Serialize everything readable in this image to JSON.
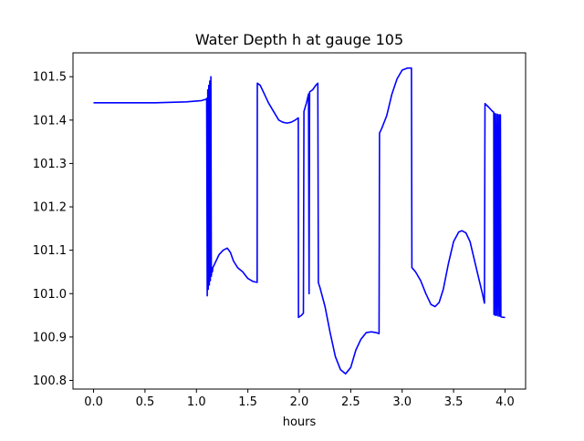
{
  "chart_data": {
    "type": "line",
    "title": "Water Depth h at gauge 105",
    "xlabel": "hours",
    "ylabel": "",
    "xlim": [
      -0.2,
      4.2
    ],
    "ylim": [
      100.78,
      101.555
    ],
    "grid": false,
    "legend": "none",
    "line_color": "#0000ff",
    "x_ticks": [
      0.0,
      0.5,
      1.0,
      1.5,
      2.0,
      2.5,
      3.0,
      3.5,
      4.0
    ],
    "x_tick_labels": [
      "0.0",
      "0.5",
      "1.0",
      "1.5",
      "2.0",
      "2.5",
      "3.0",
      "3.5",
      "4.0"
    ],
    "y_ticks": [
      100.8,
      100.9,
      101.0,
      101.1,
      101.2,
      101.3,
      101.4,
      101.5
    ],
    "y_tick_labels": [
      "100.8",
      "100.9",
      "101.0",
      "101.1",
      "101.2",
      "101.3",
      "101.4",
      "101.5"
    ],
    "series": [
      {
        "x": [
          0.0,
          0.3,
          0.6,
          0.9,
          1.05,
          1.095,
          1.1,
          1.105,
          1.11,
          1.115,
          1.12,
          1.125,
          1.13,
          1.135,
          1.14,
          1.145,
          1.15,
          1.155,
          1.16,
          1.18,
          1.22,
          1.26,
          1.3,
          1.33,
          1.36,
          1.4,
          1.45,
          1.5,
          1.55,
          1.59,
          1.592,
          1.62,
          1.66,
          1.7,
          1.75,
          1.8,
          1.84,
          1.88,
          1.92,
          1.96,
          1.99,
          1.992,
          2.02,
          2.04,
          2.045,
          2.07,
          2.09,
          2.095,
          2.1,
          2.13,
          2.16,
          2.18,
          2.185,
          2.2,
          2.25,
          2.3,
          2.35,
          2.4,
          2.45,
          2.5,
          2.55,
          2.6,
          2.65,
          2.7,
          2.75,
          2.775,
          2.78,
          2.8,
          2.85,
          2.9,
          2.95,
          3.0,
          3.05,
          3.08,
          3.09,
          3.095,
          3.13,
          3.18,
          3.23,
          3.28,
          3.32,
          3.36,
          3.4,
          3.45,
          3.5,
          3.55,
          3.58,
          3.62,
          3.66,
          3.7,
          3.74,
          3.78,
          3.8,
          3.805,
          3.84,
          3.88,
          3.89,
          3.892,
          3.9,
          3.905,
          3.915,
          3.92,
          3.93,
          3.935,
          3.945,
          3.95,
          3.955,
          3.96,
          3.965,
          4.0
        ],
        "y": [
          101.44,
          101.44,
          101.44,
          101.442,
          101.445,
          101.448,
          101.45,
          100.995,
          101.47,
          101.01,
          101.48,
          101.02,
          101.49,
          101.03,
          101.5,
          101.04,
          101.06,
          101.05,
          101.06,
          101.07,
          101.09,
          101.1,
          101.105,
          101.095,
          101.075,
          101.06,
          101.05,
          101.035,
          101.028,
          101.026,
          101.485,
          101.48,
          101.46,
          101.44,
          101.42,
          101.4,
          101.395,
          101.393,
          101.395,
          101.4,
          101.405,
          100.945,
          100.95,
          100.955,
          101.42,
          101.44,
          101.46,
          101.0,
          101.465,
          101.47,
          101.48,
          101.485,
          101.025,
          101.015,
          100.97,
          100.91,
          100.855,
          100.825,
          100.815,
          100.83,
          100.87,
          100.895,
          100.91,
          100.912,
          100.91,
          100.908,
          101.37,
          101.38,
          101.41,
          101.46,
          101.495,
          101.515,
          101.52,
          101.52,
          101.52,
          101.06,
          101.05,
          101.03,
          101.0,
          100.975,
          100.97,
          100.98,
          101.01,
          101.07,
          101.12,
          101.142,
          101.145,
          101.14,
          101.12,
          101.08,
          101.04,
          101.0,
          100.978,
          101.438,
          101.43,
          101.42,
          101.418,
          100.952,
          101.415,
          100.95,
          101.414,
          100.95,
          101.413,
          100.948,
          101.412,
          100.948,
          101.412,
          100.947,
          100.946,
          100.945
        ]
      }
    ]
  }
}
